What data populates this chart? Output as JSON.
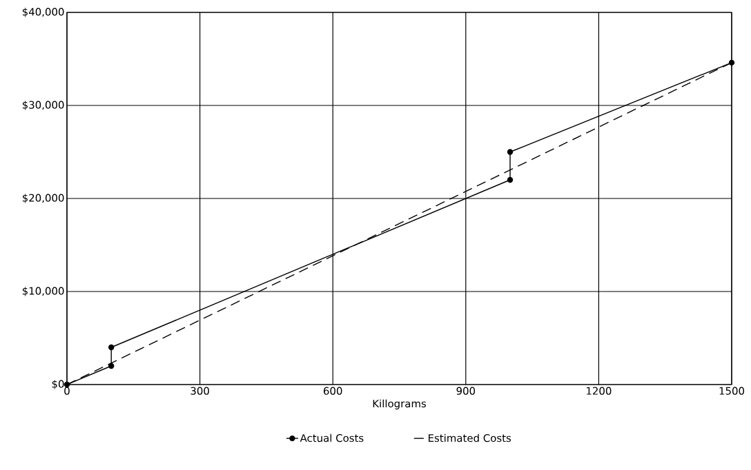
{
  "chart_data": {
    "type": "line",
    "xlabel": "Killograms",
    "xlim": [
      0,
      1500
    ],
    "xticks": [
      0,
      300,
      600,
      900,
      1200,
      1500
    ],
    "ylim": [
      0,
      40000
    ],
    "yticks": [
      {
        "value": 0,
        "label": "$0"
      },
      {
        "value": 10000,
        "label": "$10,000"
      },
      {
        "value": 20000,
        "label": "$20,000"
      },
      {
        "value": 30000,
        "label": "$30,000"
      },
      {
        "value": 40000,
        "label": "$40,000"
      }
    ],
    "grid": true,
    "legend": "bottom",
    "series": [
      {
        "name": "Actual Costs",
        "color": "#000000",
        "marker": "circle",
        "line_style": "solid",
        "x": [
          0,
          100,
          100,
          1000,
          1000,
          1500
        ],
        "values": [
          0,
          2000,
          4000,
          22000,
          25000,
          34600
        ]
      },
      {
        "name": "Estimated Costs",
        "color": "#000000",
        "marker": "none",
        "line_style": "dashed",
        "x": [
          0,
          1500
        ],
        "values": [
          0,
          34600
        ]
      }
    ]
  }
}
